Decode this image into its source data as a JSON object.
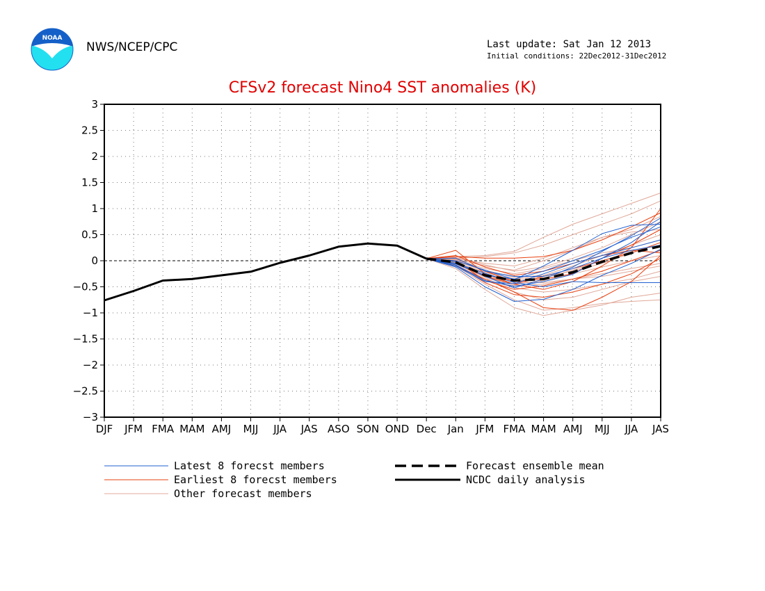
{
  "header": {
    "logo_text": "NOAA",
    "agency": "NWS/NCEP/CPC",
    "last_update": "Last update: Sat Jan 12 2013",
    "initial_conditions": "Initial conditions: 22Dec2012-31Dec2012"
  },
  "colors": {
    "title": "#e00000",
    "latest": "#2060d0",
    "earliest": "#e84010",
    "other": "#e0a898",
    "mean": "#000000",
    "analysis": "#000000",
    "logo_top": "#1560c8",
    "logo_bottom": "#22e0f0"
  },
  "chart_data": {
    "type": "line",
    "title": "CFSv2 forecast Nino4 SST anomalies (K)",
    "x_labels": [
      "DJF",
      "JFM",
      "FMA",
      "MAM",
      "AMJ",
      "MJJ",
      "JJA",
      "JAS",
      "ASO",
      "SON",
      "OND",
      "Dec",
      "Jan",
      "JFM",
      "FMA",
      "MAM",
      "AMJ",
      "MJJ",
      "JJA",
      "JAS"
    ],
    "y_ticks": [
      3,
      2.5,
      2,
      1.5,
      1,
      0.5,
      0,
      -0.5,
      -1,
      -1.5,
      -2,
      -2.5,
      -3
    ],
    "y_tick_labels": [
      "3",
      "2.5",
      "2",
      "1.5",
      "1",
      "0.5",
      "0",
      "−0.5",
      "−1",
      "−1.5",
      "−2",
      "−2.5",
      "−3"
    ],
    "ylim": [
      -3,
      3
    ],
    "grid": "dotted",
    "legend_position": "bottom",
    "zero_line": true,
    "ncdc_daily_analysis": {
      "x_start_index": 0,
      "values": [
        -0.76,
        -0.58,
        -0.38,
        -0.35,
        -0.28,
        -0.21,
        -0.04,
        0.1,
        0.27,
        0.33,
        0.29,
        0.04
      ]
    },
    "forecast_ensemble_mean": {
      "x_start_index": 11,
      "values": [
        0.04,
        -0.03,
        -0.28,
        -0.38,
        -0.35,
        -0.22,
        -0.02,
        0.15,
        0.28
      ]
    },
    "forecast_members": {
      "x_start_index": 11,
      "latest": [
        [
          0.04,
          -0.08,
          -0.38,
          -0.49,
          -0.4,
          -0.26,
          0.05,
          0.35,
          0.75
        ],
        [
          0.04,
          -0.02,
          -0.3,
          -0.52,
          -0.35,
          -0.12,
          0.18,
          0.48,
          0.82
        ],
        [
          0.04,
          -0.12,
          -0.5,
          -0.78,
          -0.74,
          -0.55,
          -0.28,
          -0.05,
          0.22
        ],
        [
          0.04,
          0.0,
          -0.18,
          -0.36,
          -0.1,
          0.2,
          0.52,
          0.68,
          0.7
        ],
        [
          0.04,
          -0.05,
          -0.24,
          -0.42,
          -0.5,
          -0.4,
          -0.42,
          -0.42,
          -0.42
        ],
        [
          0.04,
          -0.1,
          -0.4,
          -0.44,
          -0.25,
          -0.05,
          0.1,
          0.25,
          0.4
        ],
        [
          0.04,
          0.05,
          -0.2,
          -0.3,
          -0.3,
          -0.15,
          0.05,
          0.2,
          0.3
        ],
        [
          0.04,
          -0.06,
          -0.28,
          -0.35,
          -0.2,
          0.0,
          0.2,
          0.45,
          0.65
        ]
      ],
      "earliest": [
        [
          0.04,
          0.2,
          -0.25,
          -0.45,
          -0.55,
          -0.4,
          -0.1,
          0.25,
          1.0
        ],
        [
          0.04,
          0.05,
          -0.2,
          -0.4,
          -0.35,
          -0.25,
          0.05,
          0.3,
          0.6
        ],
        [
          0.04,
          -0.1,
          -0.35,
          -0.6,
          -0.9,
          -0.95,
          -0.7,
          -0.4,
          0.1
        ],
        [
          0.04,
          0.08,
          0.05,
          0.05,
          0.08,
          0.2,
          0.4,
          0.65,
          0.92
        ],
        [
          0.04,
          -0.05,
          -0.3,
          -0.45,
          -0.3,
          -0.15,
          0.0,
          0.15,
          0.35
        ],
        [
          0.04,
          0.0,
          -0.38,
          -0.55,
          -0.48,
          -0.35,
          -0.2,
          0.0,
          0.2
        ],
        [
          0.04,
          -0.08,
          -0.42,
          -0.65,
          -0.7,
          -0.6,
          -0.45,
          -0.25,
          0.05
        ],
        [
          0.04,
          0.1,
          -0.12,
          -0.28,
          -0.2,
          -0.05,
          0.1,
          0.2,
          0.15
        ]
      ],
      "other": [
        [
          0.04,
          0.08,
          0.1,
          0.18,
          0.45,
          0.7,
          0.9,
          1.1,
          1.3
        ],
        [
          0.04,
          0.05,
          0.08,
          0.15,
          0.3,
          0.5,
          0.7,
          0.9,
          1.15
        ],
        [
          0.04,
          -0.15,
          -0.55,
          -0.9,
          -1.05,
          -0.95,
          -0.85,
          -0.7,
          -0.62
        ],
        [
          0.04,
          -0.1,
          -0.45,
          -0.75,
          -0.95,
          -0.9,
          -0.82,
          -0.78,
          -0.75
        ],
        [
          0.04,
          0.0,
          -0.2,
          -0.35,
          -0.3,
          -0.2,
          -0.05,
          0.15,
          0.35
        ],
        [
          0.04,
          0.02,
          -0.15,
          -0.25,
          -0.15,
          0.0,
          0.15,
          0.25,
          0.4
        ],
        [
          0.04,
          -0.04,
          -0.3,
          -0.48,
          -0.45,
          -0.35,
          -0.25,
          -0.15,
          -0.05
        ],
        [
          0.04,
          0.06,
          -0.08,
          -0.2,
          -0.12,
          0.05,
          0.25,
          0.5,
          0.75
        ],
        [
          0.04,
          -0.08,
          -0.35,
          -0.52,
          -0.6,
          -0.55,
          -0.45,
          -0.35,
          -0.2
        ],
        [
          0.04,
          0.03,
          -0.1,
          -0.18,
          0.0,
          0.2,
          0.45,
          0.6,
          0.85
        ],
        [
          0.04,
          -0.02,
          -0.25,
          -0.4,
          -0.42,
          -0.35,
          -0.3,
          -0.2,
          -0.1
        ],
        [
          0.04,
          0.01,
          -0.18,
          -0.32,
          -0.28,
          -0.1,
          0.1,
          0.3,
          0.5
        ],
        [
          0.04,
          -0.06,
          -0.32,
          -0.6,
          -0.75,
          -0.7,
          -0.55,
          -0.4,
          -0.3
        ],
        [
          0.04,
          0.04,
          -0.05,
          -0.1,
          0.05,
          0.25,
          0.45,
          0.55,
          0.6
        ],
        [
          0.04,
          -0.03,
          -0.22,
          -0.38,
          -0.33,
          -0.18,
          0.0,
          0.18,
          0.3
        ],
        [
          0.04,
          0.0,
          -0.28,
          -0.45,
          -0.38,
          -0.25,
          -0.12,
          0.0,
          0.1
        ]
      ]
    },
    "legend": [
      {
        "label": "Latest 8 forecst members",
        "style": "latest"
      },
      {
        "label": "Earliest 8 forecst members",
        "style": "earliest"
      },
      {
        "label": "Other forecast members",
        "style": "other"
      },
      {
        "label": "Forecast ensemble mean",
        "style": "mean"
      },
      {
        "label": "NCDC daily analysis",
        "style": "analysis"
      }
    ]
  }
}
